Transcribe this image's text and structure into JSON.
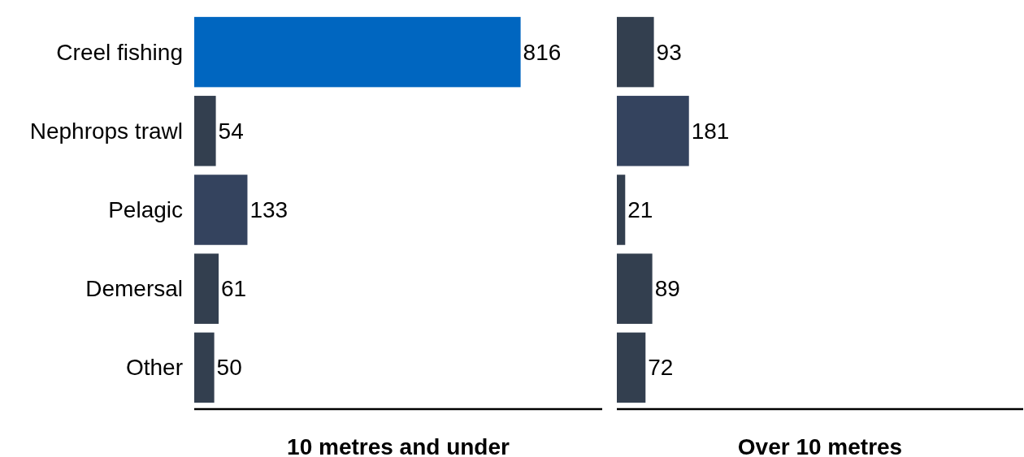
{
  "chart_data": [
    {
      "type": "bar",
      "orientation": "horizontal",
      "categories": [
        "Creel fishing",
        "Nephrops trawl",
        "Pelagic",
        "Demersal",
        "Other"
      ],
      "values": [
        816,
        54,
        133,
        61,
        50
      ],
      "colors": [
        "#0066c0",
        "#333f4f",
        "#34435e",
        "#333f4f",
        "#333f4f"
      ],
      "xlim": [
        0,
        1020
      ],
      "xlabel": "10 metres and under",
      "data_labels": true,
      "tick_labels": "y"
    },
    {
      "type": "bar",
      "orientation": "horizontal",
      "categories": [
        "Creel fishing",
        "Nephrops trawl",
        "Pelagic",
        "Demersal",
        "Other"
      ],
      "values": [
        93,
        181,
        21,
        89,
        72
      ],
      "colors": [
        "#333f4f",
        "#34435e",
        "#333f4f",
        "#333f4f",
        "#333f4f"
      ],
      "xlim": [
        0,
        1020
      ],
      "xlabel": "Over 10 metres",
      "data_labels": true,
      "tick_labels": false
    }
  ]
}
